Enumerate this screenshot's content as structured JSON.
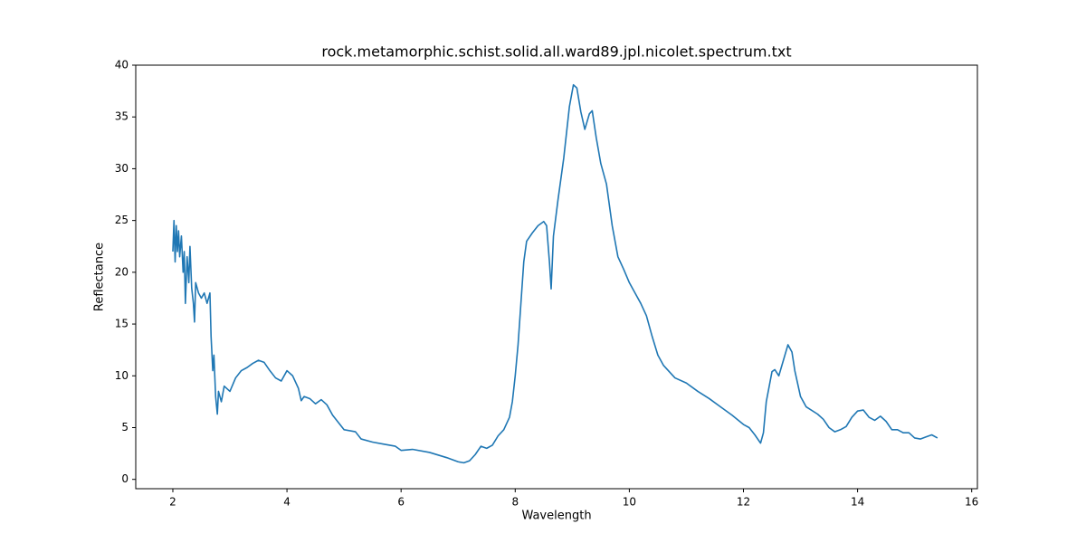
{
  "chart_data": {
    "type": "line",
    "title": "rock.metamorphic.schist.solid.all.ward89.jpl.nicolet.spectrum.txt",
    "x_label": "Wavelength",
    "y_label": "Reflectance",
    "xlim": [
      1.35,
      16.1
    ],
    "ylim": [
      -0.9,
      40
    ],
    "xticks": [
      2,
      4,
      6,
      8,
      10,
      12,
      14,
      16
    ],
    "yticks": [
      0,
      5,
      10,
      15,
      20,
      25,
      30,
      35,
      40
    ],
    "series": [
      {
        "color": "#1f77b4",
        "x": [
          2.0,
          2.02,
          2.04,
          2.06,
          2.08,
          2.1,
          2.12,
          2.15,
          2.18,
          2.2,
          2.22,
          2.25,
          2.28,
          2.3,
          2.33,
          2.36,
          2.38,
          2.4,
          2.45,
          2.5,
          2.55,
          2.6,
          2.65,
          2.67,
          2.7,
          2.72,
          2.75,
          2.78,
          2.8,
          2.85,
          2.9,
          3.0,
          3.1,
          3.2,
          3.3,
          3.4,
          3.5,
          3.6,
          3.7,
          3.8,
          3.9,
          4.0,
          4.1,
          4.2,
          4.25,
          4.3,
          4.4,
          4.5,
          4.6,
          4.7,
          4.8,
          4.9,
          5.0,
          5.2,
          5.3,
          5.5,
          5.7,
          5.9,
          6.0,
          6.2,
          6.5,
          6.8,
          7.0,
          7.1,
          7.2,
          7.3,
          7.4,
          7.5,
          7.6,
          7.7,
          7.8,
          7.9,
          7.95,
          8.0,
          8.05,
          8.1,
          8.15,
          8.2,
          8.3,
          8.4,
          8.5,
          8.55,
          8.6,
          8.63,
          8.67,
          8.75,
          8.85,
          8.95,
          9.02,
          9.08,
          9.15,
          9.22,
          9.3,
          9.35,
          9.42,
          9.5,
          9.6,
          9.7,
          9.8,
          9.9,
          10.0,
          10.1,
          10.2,
          10.3,
          10.4,
          10.5,
          10.6,
          10.8,
          11.0,
          11.2,
          11.4,
          11.6,
          11.8,
          12.0,
          12.1,
          12.2,
          12.3,
          12.35,
          12.4,
          12.5,
          12.55,
          12.62,
          12.7,
          12.78,
          12.85,
          12.9,
          13.0,
          13.1,
          13.3,
          13.4,
          13.5,
          13.6,
          13.7,
          13.8,
          13.9,
          14.0,
          14.1,
          14.2,
          14.3,
          14.4,
          14.5,
          14.6,
          14.7,
          14.8,
          14.9,
          15.0,
          15.1,
          15.2,
          15.3,
          15.4
        ],
        "values": [
          22,
          25,
          21,
          24.5,
          22,
          24,
          21.5,
          23.5,
          20,
          22,
          17,
          21.5,
          19,
          22.5,
          18.5,
          17,
          15.2,
          19,
          18,
          17.5,
          18,
          17,
          18,
          13.8,
          10.5,
          12,
          8,
          6.3,
          8.5,
          7.5,
          9,
          8.5,
          9.8,
          10.5,
          10.8,
          11.2,
          11.5,
          11.3,
          10.5,
          9.8,
          9.5,
          10.5,
          10,
          8.8,
          7.6,
          8,
          7.8,
          7.3,
          7.7,
          7.2,
          6.2,
          5.5,
          4.8,
          4.6,
          3.9,
          3.6,
          3.4,
          3.2,
          2.8,
          2.9,
          2.6,
          2.1,
          1.7,
          1.6,
          1.8,
          2.4,
          3.2,
          3.0,
          3.3,
          4.2,
          4.8,
          6,
          7.5,
          10,
          13,
          17,
          21,
          23,
          23.8,
          24.5,
          24.9,
          24.5,
          21,
          18.4,
          23.5,
          27,
          31,
          36,
          38.1,
          37.8,
          35.5,
          33.8,
          35.3,
          35.6,
          33,
          30.5,
          28.5,
          24.5,
          21.5,
          20.3,
          19,
          18,
          17,
          15.8,
          13.8,
          12,
          11,
          9.8,
          9.3,
          8.5,
          7.8,
          7,
          6.2,
          5.3,
          5.0,
          4.3,
          3.5,
          4.5,
          7.5,
          10.4,
          10.6,
          10,
          11.5,
          13,
          12.3,
          10.5,
          8,
          7,
          6.3,
          5.8,
          5.0,
          4.6,
          4.8,
          5.1,
          6,
          6.6,
          6.7,
          6.0,
          5.7,
          6.1,
          5.6,
          4.8,
          4.8,
          4.5,
          4.5,
          4.0,
          3.9,
          4.1,
          4.3,
          4.0
        ]
      }
    ]
  }
}
